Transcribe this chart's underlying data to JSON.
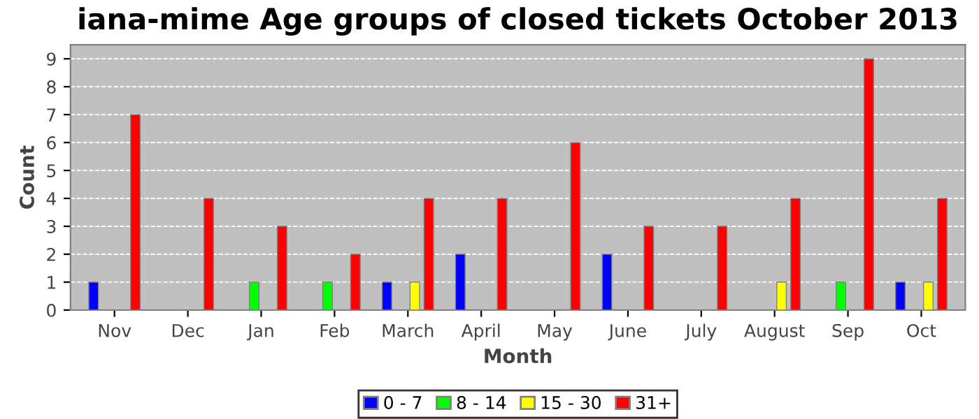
{
  "chart_data": {
    "type": "bar",
    "title": "iana-mime Age groups of closed tickets October 2013",
    "xlabel": "Month",
    "ylabel": "Count",
    "categories": [
      "Nov",
      "Dec",
      "Jan",
      "Feb",
      "March",
      "April",
      "May",
      "June",
      "July",
      "August",
      "Sep",
      "Oct"
    ],
    "series": [
      {
        "name": "0 - 7",
        "color": "#0000ff",
        "values": [
          1,
          null,
          null,
          null,
          1,
          2,
          null,
          2,
          null,
          null,
          null,
          1
        ]
      },
      {
        "name": "8 - 14",
        "color": "#00ff00",
        "values": [
          null,
          null,
          1,
          1,
          null,
          null,
          null,
          null,
          null,
          null,
          1,
          null
        ]
      },
      {
        "name": "15 - 30",
        "color": "#ffff00",
        "values": [
          null,
          null,
          null,
          null,
          1,
          null,
          null,
          null,
          null,
          1,
          null,
          1
        ]
      },
      {
        "name": "31+",
        "color": "#ff0000",
        "values": [
          7,
          4,
          3,
          2,
          4,
          4,
          6,
          3,
          3,
          4,
          9,
          4
        ]
      }
    ],
    "ylim": [
      0,
      9.5
    ],
    "yticks": [
      0,
      1,
      2,
      3,
      4,
      5,
      6,
      7,
      8,
      9
    ],
    "grid": "y",
    "legend": "bottom"
  }
}
